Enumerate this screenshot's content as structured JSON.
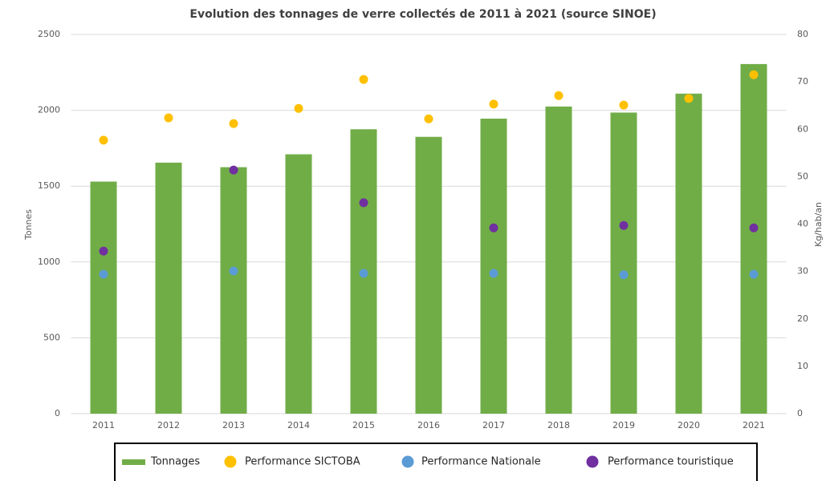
{
  "chart_data": {
    "type": "bar",
    "title": "Evolution des tonnages de verre collectés de 2011 à 2021 (source SINOE)",
    "y_label": "Tonnes",
    "y2_label": "Kg/hab/an",
    "categories": [
      "2011",
      "2012",
      "2013",
      "2014",
      "2015",
      "2016",
      "2017",
      "2018",
      "2019",
      "2020",
      "2021"
    ],
    "series": [
      {
        "name": "Tonnages",
        "type": "bar",
        "color": "#70ad47",
        "values": [
          1530,
          1655,
          1625,
          1710,
          1875,
          1825,
          1945,
          2025,
          1985,
          2110,
          2305
        ]
      },
      {
        "name": "Performance SICTOBA",
        "type": "scatter",
        "axis": "y2",
        "color": "#ffc000",
        "values": [
          57.7,
          62.4,
          61.2,
          64.4,
          70.5,
          62.2,
          65.3,
          67.1,
          65.1,
          66.5,
          71.5
        ]
      },
      {
        "name": "Performance Nationale",
        "type": "scatter",
        "axis": "y2",
        "color": "#5b9bd5",
        "values": [
          29.4,
          null,
          30.1,
          null,
          29.6,
          null,
          29.6,
          null,
          29.3,
          null,
          29.4
        ]
      },
      {
        "name": "Performance touristique",
        "type": "scatter",
        "axis": "y2",
        "color": "#7030a0",
        "values": [
          34.3,
          null,
          51.4,
          null,
          44.5,
          null,
          39.2,
          null,
          39.7,
          null,
          39.2
        ]
      }
    ],
    "ylim": [
      0,
      2500
    ],
    "yticks": [
      0,
      500,
      1000,
      1500,
      2000,
      2500
    ],
    "y2lim": [
      0,
      80
    ],
    "y2ticks": [
      0,
      10,
      20,
      30,
      40,
      50,
      60,
      70,
      80
    ],
    "grid": true,
    "legend": "bottom"
  }
}
